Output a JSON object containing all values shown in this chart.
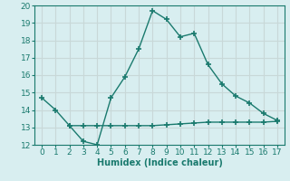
{
  "line1_x": [
    0,
    1,
    2,
    3,
    4,
    5,
    6,
    7,
    8,
    9,
    10,
    11,
    12,
    13,
    14,
    15,
    16,
    17
  ],
  "line1_y": [
    14.7,
    14.0,
    13.1,
    12.2,
    12.0,
    14.7,
    15.9,
    17.5,
    19.7,
    19.2,
    18.2,
    18.4,
    16.6,
    15.5,
    14.8,
    14.4,
    13.8,
    13.4
  ],
  "line2_x": [
    2,
    3,
    4,
    5,
    6,
    7,
    8,
    9,
    10,
    11,
    12,
    13,
    14,
    15,
    16,
    17
  ],
  "line2_y": [
    13.1,
    13.1,
    13.1,
    13.1,
    13.1,
    13.1,
    13.1,
    13.15,
    13.2,
    13.25,
    13.3,
    13.3,
    13.3,
    13.3,
    13.3,
    13.35
  ],
  "line_color": "#1a7a6e",
  "bg_color": "#d8eef0",
  "grid_color": "#c8d8d8",
  "xlabel": "Humidex (Indice chaleur)",
  "xlim": [
    -0.5,
    17.5
  ],
  "ylim": [
    12,
    20
  ],
  "xticks": [
    0,
    1,
    2,
    3,
    4,
    5,
    6,
    7,
    8,
    9,
    10,
    11,
    12,
    13,
    14,
    15,
    16,
    17
  ],
  "yticks": [
    12,
    13,
    14,
    15,
    16,
    17,
    18,
    19,
    20
  ],
  "marker": "+",
  "markersize": 5,
  "linewidth": 1.0,
  "xlabel_fontsize": 7,
  "tick_fontsize": 6.5
}
